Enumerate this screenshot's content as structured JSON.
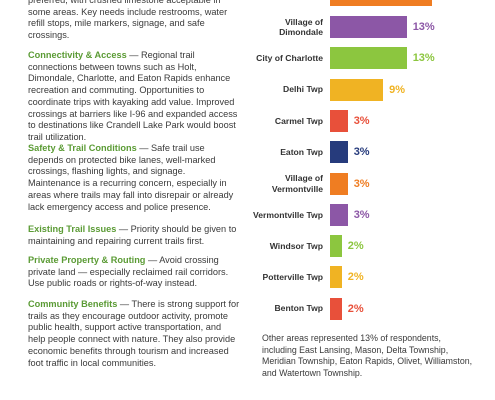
{
  "paragraphs": [
    {
      "text": "preferred, with crushed limestone acceptable in some areas. Key needs include restrooms, water refill stops, mile markers, signage, and safe crossings."
    },
    {
      "heading": "Connectivity & Access",
      "text": " — Regional trail connections between towns such as Holt, Dimondale, Charlotte, and Eaton Rapids enhance recreation and commuting. Opportunities to coordinate trips with kayaking add value. Improved crossings at barriers like I-96 and expanded access to destinations like Crandell Lake Park would boost trail utilization."
    },
    {
      "heading": "Safety & Trail Conditions",
      "text": " — Safe trail use depends on protected bike lanes, well-marked crossings, flashing lights, and signage. Maintenance is a recurring concern, especially in areas where trails may fall into disrepair or already lack emergency access and police presence."
    },
    {
      "heading": "Existing Trail Issues",
      "text": " — Priority should be given to maintaining and repairing current trails first."
    },
    {
      "heading": "Private Property & Routing",
      "text": " — Avoid crossing private land — especially reclaimed rail corridors. Use public roads or rights-of-way instead."
    },
    {
      "heading": "Community Benefits",
      "text": " — There is strong support for trails as they encourage outdoor activity, promote public health, support active transportation, and help people connect with nature. They also provide economic benefits through tourism and increased foot traffic in local communities."
    }
  ],
  "chart_data": {
    "type": "bar",
    "categories": [
      "Village of Dimondale",
      "City of Charlotte",
      "Delhi Twp",
      "Carmel Twp",
      "Eaton Twp",
      "Village of Vermontville",
      "Vermontville Twp",
      "Windsor Twp",
      "Potterville Twp",
      "Benton Twp"
    ],
    "values": [
      13,
      13,
      9,
      3,
      3,
      3,
      3,
      2,
      2,
      2
    ],
    "value_labels": [
      "13%",
      "13%",
      "9%",
      "3%",
      "3%",
      "3%",
      "3%",
      "2%",
      "2%",
      "2%"
    ],
    "colors": [
      "#8c57a6",
      "#8cc63f",
      "#f0b323",
      "#e8503a",
      "#263b7c",
      "#ef7d22",
      "#8c57a6",
      "#8cc63f",
      "#f0b323",
      "#e8503a"
    ]
  },
  "footnote": "Other areas represented 13% of respondents, including East Lansing, Mason, Delta Township, Meridian Township, Eaton Rapids, Olivet, Williamston, and Watertown Township."
}
